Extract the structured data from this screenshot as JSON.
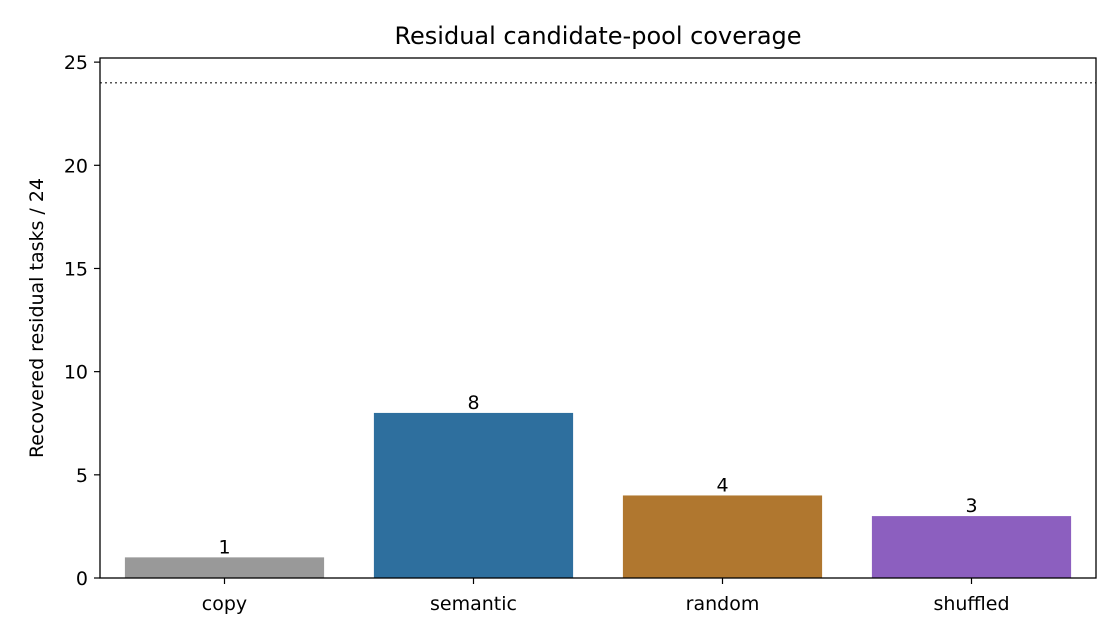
{
  "chart_data": {
    "type": "bar",
    "title": "Residual candidate-pool coverage",
    "xlabel": "",
    "ylabel": "Recovered residual tasks / 24",
    "categories": [
      "copy",
      "semantic",
      "random",
      "shuffled"
    ],
    "values": [
      1,
      8,
      4,
      3
    ],
    "value_labels": [
      "1",
      "8",
      "4",
      "3"
    ],
    "colors": [
      "#999999",
      "#2e6f9e",
      "#b0772f",
      "#8c5fbf"
    ],
    "ylim": [
      0,
      25.2
    ],
    "yticks": [
      0,
      5,
      10,
      15,
      20,
      25
    ],
    "ytick_labels": [
      "0",
      "5",
      "10",
      "15",
      "20",
      "25"
    ],
    "reference_line": {
      "y": 24,
      "style": "dotted",
      "color": "#555555"
    },
    "grid": false,
    "legend": "none"
  }
}
